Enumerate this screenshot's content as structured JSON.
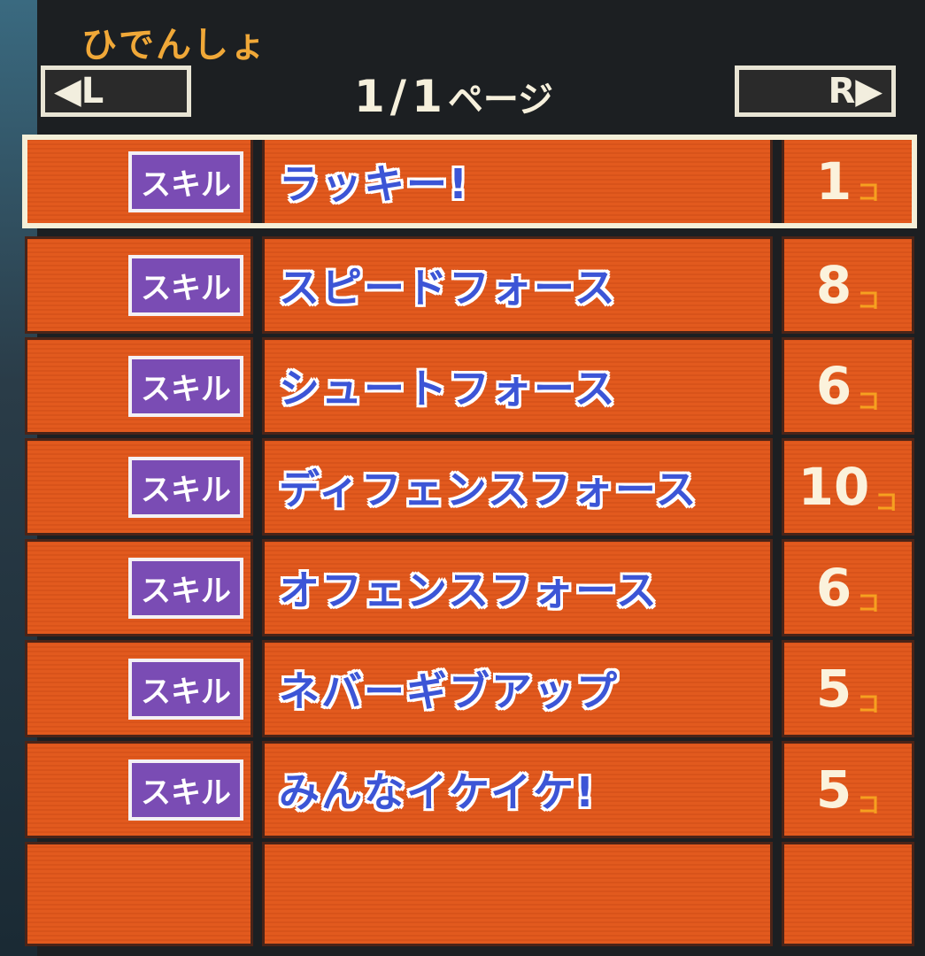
{
  "header": {
    "title": "ひでんしょ",
    "prev_label": "◀L",
    "next_label": "R▶",
    "page_current": "1",
    "page_sep": "/",
    "page_total": "1",
    "page_unit": "ページ"
  },
  "items": [
    {
      "tag": "スキル",
      "name": "ラッキー!",
      "count": "1",
      "unit": "コ"
    },
    {
      "tag": "スキル",
      "name": "スピードフォース",
      "count": "8",
      "unit": "コ"
    },
    {
      "tag": "スキル",
      "name": "シュートフォース",
      "count": "6",
      "unit": "コ"
    },
    {
      "tag": "スキル",
      "name": "ディフェンスフォース",
      "count": "10",
      "unit": "コ"
    },
    {
      "tag": "スキル",
      "name": "オフェンスフォース",
      "count": "6",
      "unit": "コ"
    },
    {
      "tag": "スキル",
      "name": "ネバーギブアップ",
      "count": "5",
      "unit": "コ"
    },
    {
      "tag": "スキル",
      "name": "みんなイケイケ!",
      "count": "5",
      "unit": "コ"
    }
  ],
  "colors": {
    "row": "#e25a1e",
    "badge": "#7a4cb4",
    "name": "#3c55d6",
    "title": "#f0a838"
  }
}
